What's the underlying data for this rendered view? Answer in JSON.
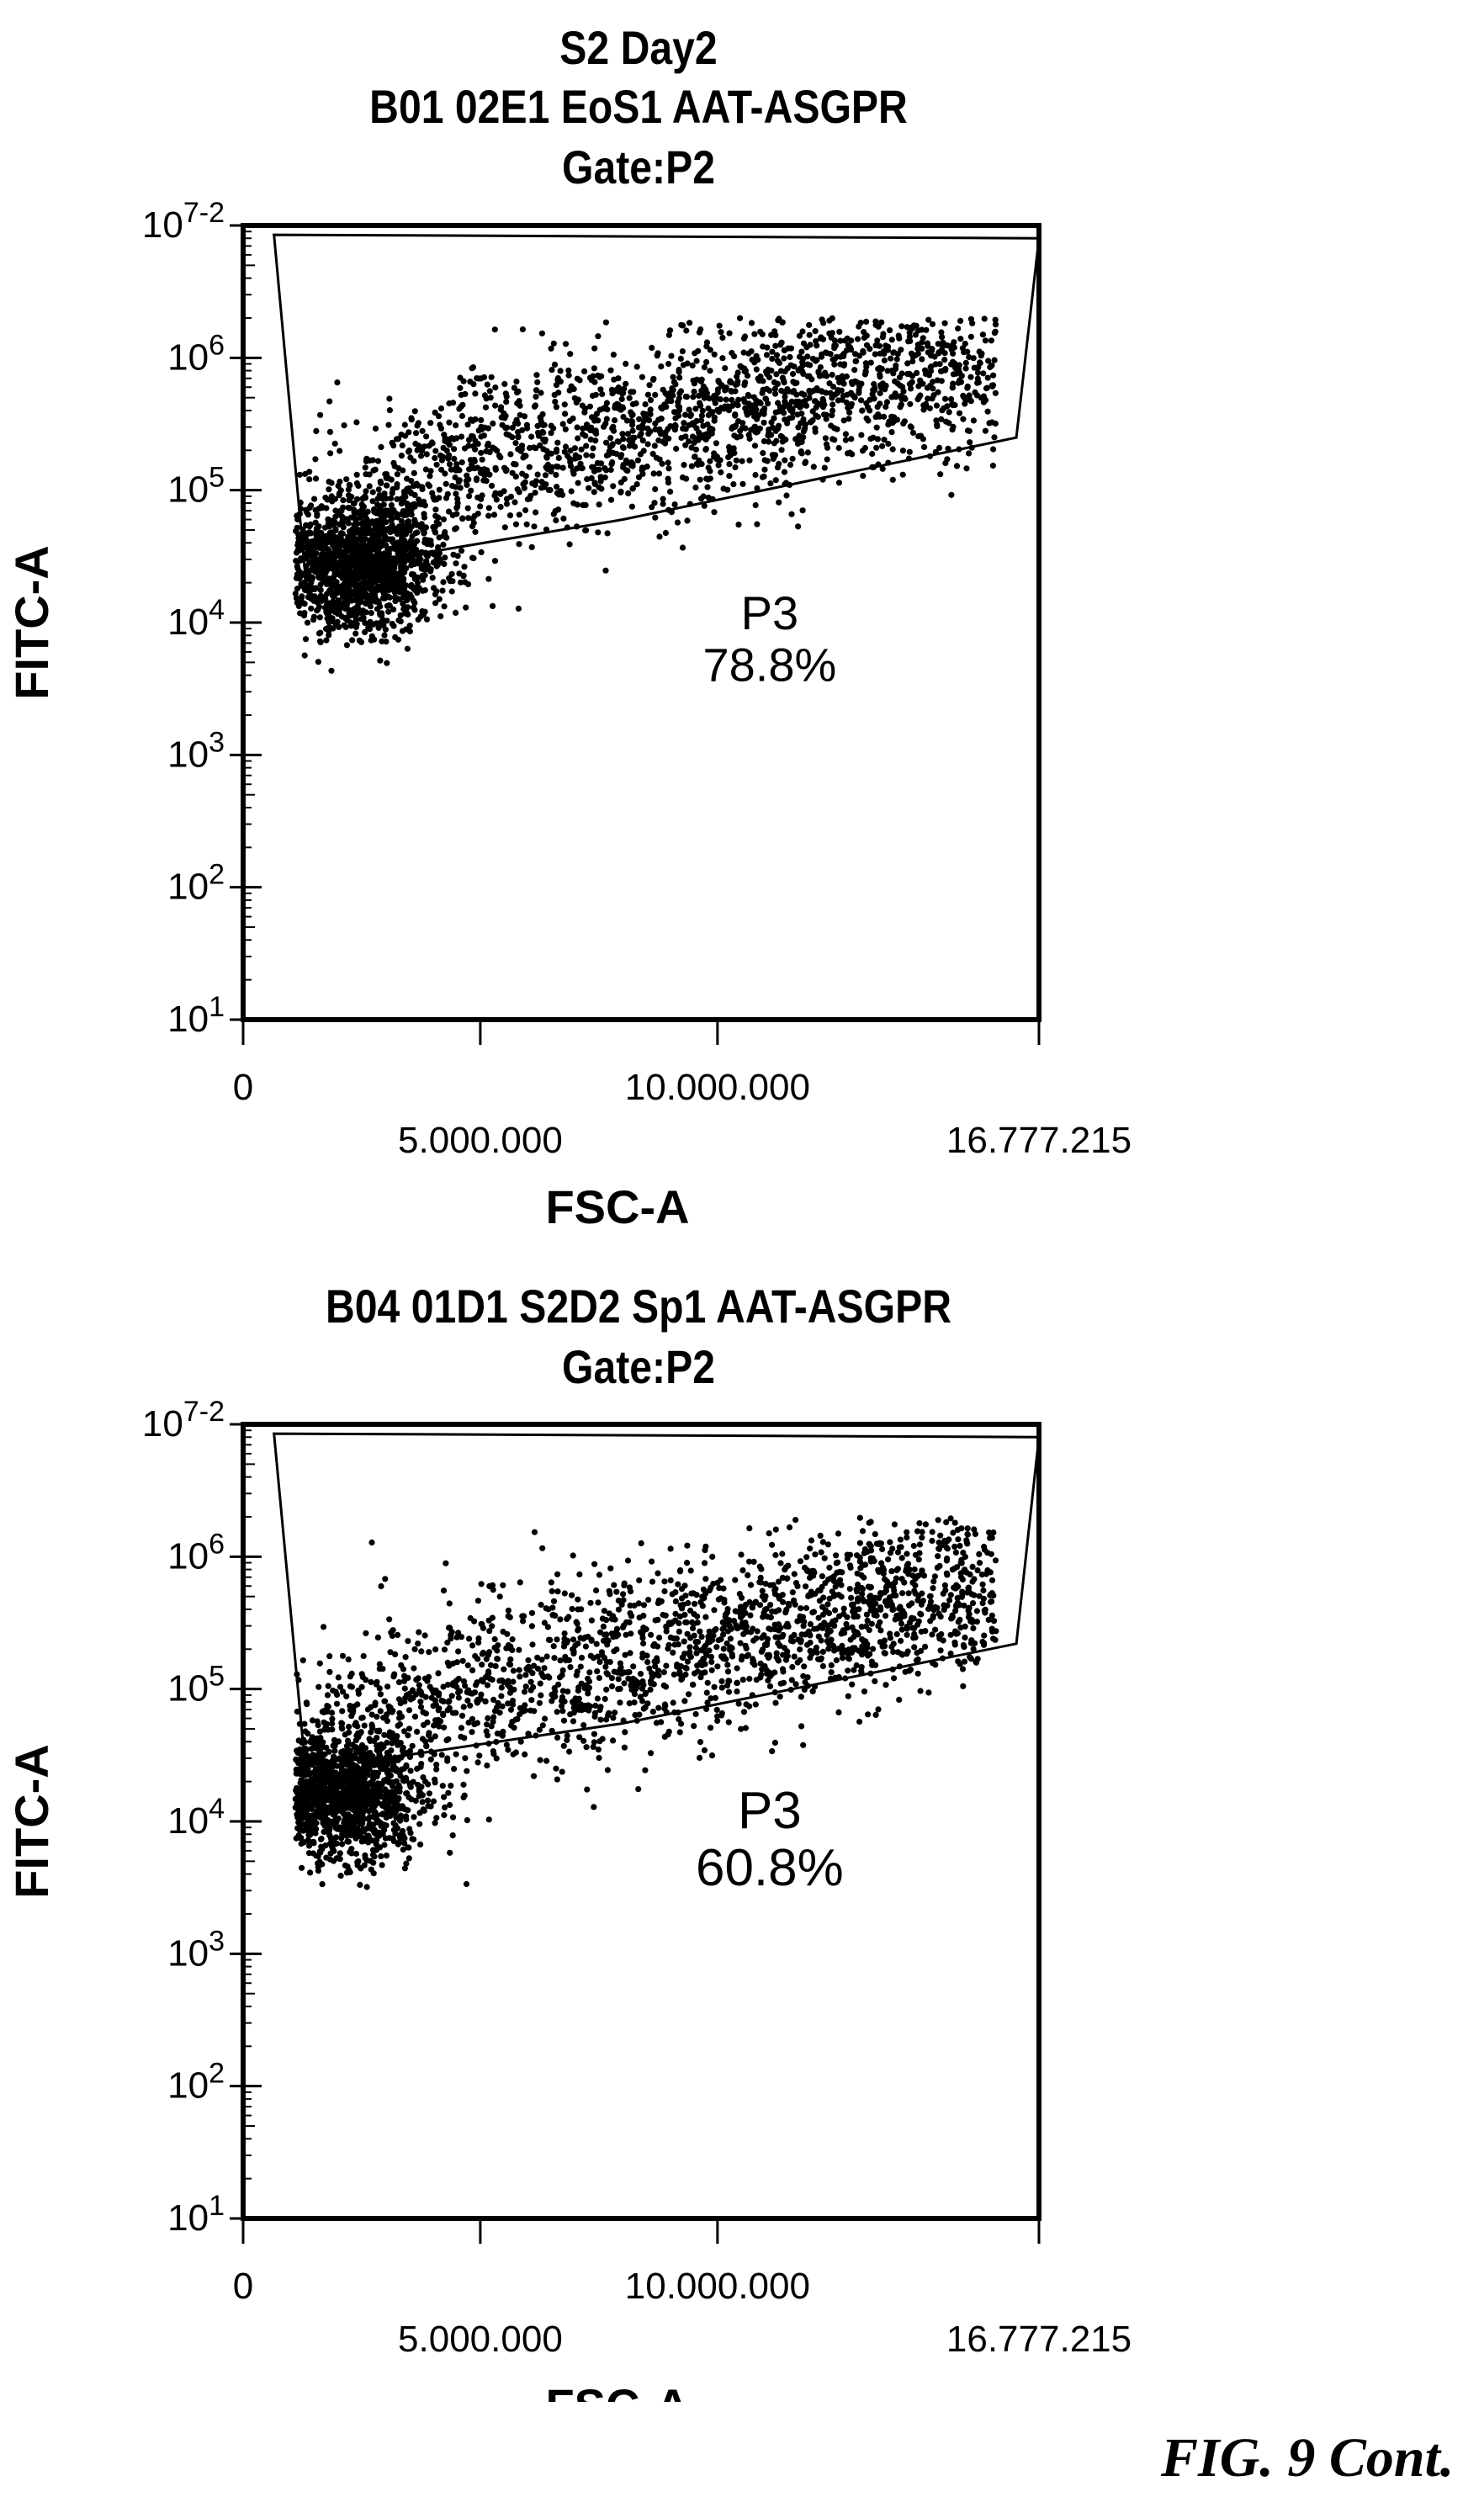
{
  "heading": "S2 Day2",
  "figure_caption": "FIG. 9 Cont.",
  "style": {
    "ink": "#000000",
    "background": "#ffffff"
  },
  "chart_data": [
    {
      "type": "scatter",
      "title_lines": [
        "B01 02E1 EoS1 AAT-ASGPR",
        "Gate:P2"
      ],
      "xlabel": "FSC-A",
      "ylabel": "FITC-A",
      "x_scale": "linear",
      "y_scale": "log",
      "xlim": [
        0,
        16777215
      ],
      "ylim": [
        10,
        10000000
      ],
      "x_ticks": [
        "0",
        "5.000.000",
        "10.000.000",
        "16.777.215"
      ],
      "y_ticks": [
        "10^1",
        "10^2",
        "10^3",
        "10^4",
        "10^5",
        "10^6",
        "10^7-2"
      ],
      "gate": {
        "name": "P3",
        "percent": "78.8%",
        "polygon": [
          [
            650000,
            8500000
          ],
          [
            16777215,
            8000000
          ],
          [
            16300000,
            250000
          ],
          [
            8000000,
            60000
          ],
          [
            3000000,
            30000
          ],
          [
            1300000,
            25000
          ]
        ]
      },
      "population": {
        "events_drawn_approx": 3600,
        "dense_core_center": [
          2400000,
          28000
        ],
        "upper_right_extent": [
          16500000,
          900000
        ]
      },
      "grid": false,
      "legend": "none"
    },
    {
      "type": "scatter",
      "title_lines": [
        "B04 01D1 S2D2 Sp1 AAT-ASGPR",
        "Gate:P2"
      ],
      "xlabel": "FSC-A",
      "ylabel": "FITC-A",
      "x_scale": "linear",
      "y_scale": "log",
      "xlim": [
        0,
        16777215
      ],
      "ylim": [
        10,
        10000000
      ],
      "x_ticks": [
        "0",
        "5.000.000",
        "10.000.000",
        "16.777.215"
      ],
      "y_ticks": [
        "10^1",
        "10^2",
        "10^3",
        "10^4",
        "10^5",
        "10^6",
        "10^7-2"
      ],
      "gate": {
        "name": "P3",
        "percent": "60.8%",
        "polygon": [
          [
            650000,
            8500000
          ],
          [
            16777215,
            8000000
          ],
          [
            16300000,
            220000
          ],
          [
            8000000,
            55000
          ],
          [
            3000000,
            30000
          ],
          [
            1300000,
            28000
          ]
        ]
      },
      "population": {
        "events_drawn_approx": 3600,
        "dense_core_center": [
          2000000,
          16000
        ],
        "upper_right_extent": [
          16500000,
          550000
        ]
      },
      "grid": false,
      "legend": "none"
    }
  ]
}
